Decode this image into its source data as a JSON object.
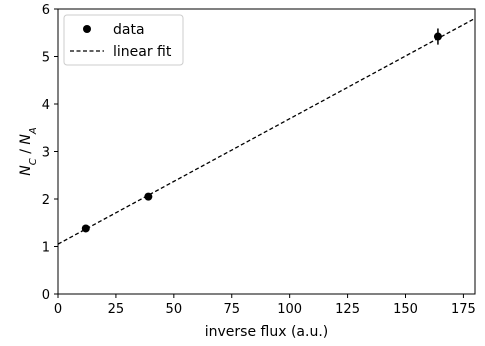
{
  "chart_data": {
    "type": "scatter",
    "xlabel": "inverse flux (a.u.)",
    "ylabel_parts": [
      "N",
      "C",
      " / ",
      "N",
      "A"
    ],
    "xlim": [
      0,
      180
    ],
    "ylim": [
      0,
      6
    ],
    "xticks": [
      0,
      25,
      50,
      75,
      100,
      125,
      150,
      175
    ],
    "yticks": [
      0,
      1,
      2,
      3,
      4,
      5,
      6
    ],
    "grid": false,
    "legend_placement": "top-left",
    "series": [
      {
        "name": "data",
        "kind": "points",
        "color": "#000000",
        "points": [
          {
            "x": 12,
            "y": 1.38,
            "yerr": 0.05
          },
          {
            "x": 39,
            "y": 2.05,
            "yerr": 0.04
          },
          {
            "x": 164,
            "y": 5.42,
            "yerr": 0.17
          }
        ]
      },
      {
        "name": "linear fit",
        "kind": "line",
        "style": "dashed",
        "color": "#000000",
        "intercept": 1.05,
        "slope": 0.0264
      }
    ]
  }
}
